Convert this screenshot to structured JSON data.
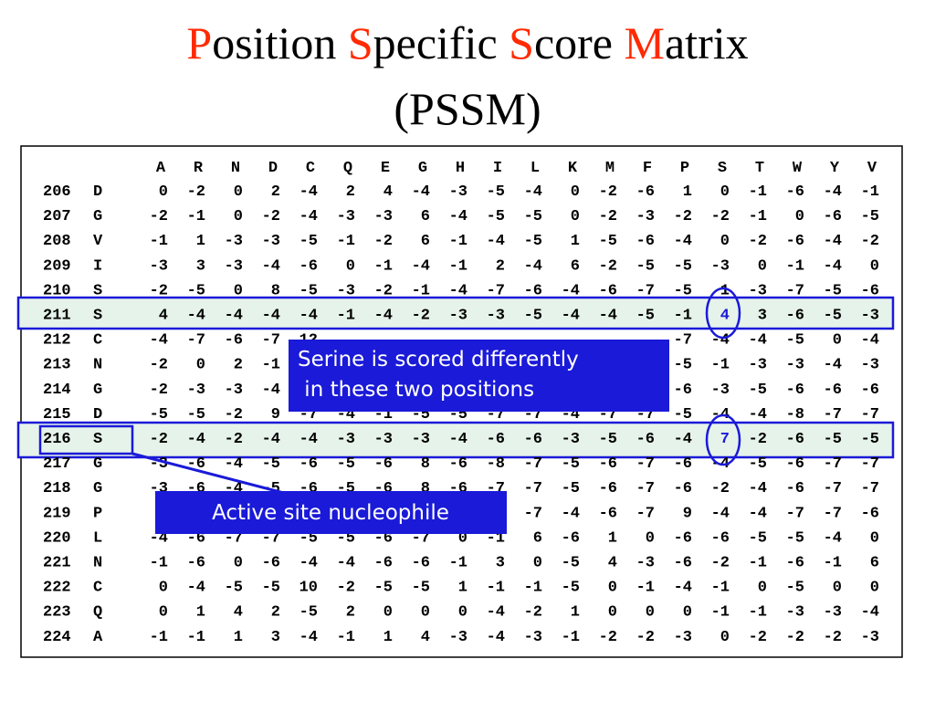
{
  "header": {
    "title_parts": [
      "P",
      "osition ",
      "S",
      "pecific ",
      "S",
      "core ",
      "M",
      "atrix"
    ],
    "subtitle": "(PSSM)"
  },
  "table": {
    "columns": [
      "A",
      "R",
      "N",
      "D",
      "C",
      "Q",
      "E",
      "G",
      "H",
      "I",
      "L",
      "K",
      "M",
      "F",
      "P",
      "S",
      "T",
      "W",
      "Y",
      "V"
    ],
    "rows": [
      {
        "position": 206,
        "residue": "D",
        "scores": [
          0,
          -2,
          0,
          2,
          -4,
          2,
          4,
          -4,
          -3,
          -5,
          -4,
          0,
          -2,
          -6,
          1,
          0,
          -1,
          -6,
          -4,
          -1
        ]
      },
      {
        "position": 207,
        "residue": "G",
        "scores": [
          -2,
          -1,
          0,
          -2,
          -4,
          -3,
          -3,
          6,
          -4,
          -5,
          -5,
          0,
          -2,
          -3,
          -2,
          -2,
          -1,
          0,
          -6,
          -5
        ]
      },
      {
        "position": 208,
        "residue": "V",
        "scores": [
          -1,
          1,
          -3,
          -3,
          -5,
          -1,
          -2,
          6,
          -1,
          -4,
          -5,
          1,
          -5,
          -6,
          -4,
          0,
          -2,
          -6,
          -4,
          -2
        ]
      },
      {
        "position": 209,
        "residue": "I",
        "scores": [
          -3,
          3,
          -3,
          -4,
          -6,
          0,
          -1,
          -4,
          -1,
          2,
          -4,
          6,
          -2,
          -5,
          -5,
          -3,
          0,
          -1,
          -4,
          0
        ]
      },
      {
        "position": 210,
        "residue": "S",
        "scores": [
          -2,
          -5,
          0,
          8,
          -5,
          -3,
          -2,
          -1,
          -4,
          -7,
          -6,
          -4,
          -6,
          -7,
          -5,
          1,
          -3,
          -7,
          -5,
          -6
        ]
      },
      {
        "position": 211,
        "residue": "S",
        "scores": [
          4,
          -4,
          -4,
          -4,
          -4,
          -1,
          -4,
          -2,
          -3,
          -3,
          -5,
          -4,
          -4,
          -5,
          -1,
          4,
          3,
          -6,
          -5,
          -3
        ]
      },
      {
        "position": 212,
        "residue": "C",
        "scores": [
          -4,
          -7,
          -6,
          -7,
          12,
          null,
          null,
          null,
          null,
          null,
          null,
          null,
          null,
          null,
          -7,
          -4,
          -4,
          -5,
          0,
          -4
        ]
      },
      {
        "position": 213,
        "residue": "N",
        "scores": [
          -2,
          0,
          2,
          -1,
          null,
          null,
          null,
          null,
          null,
          null,
          null,
          null,
          null,
          null,
          -5,
          -1,
          -3,
          -3,
          -4,
          -3
        ]
      },
      {
        "position": 214,
        "residue": "G",
        "scores": [
          -2,
          -3,
          -3,
          -4,
          null,
          null,
          null,
          null,
          null,
          null,
          null,
          null,
          null,
          null,
          -6,
          -3,
          -5,
          -6,
          -6,
          -6
        ]
      },
      {
        "position": 215,
        "residue": "D",
        "scores": [
          -5,
          -5,
          -2,
          9,
          -7,
          -4,
          -1,
          -5,
          -5,
          -7,
          -7,
          -4,
          -7,
          -7,
          -5,
          -4,
          -4,
          -8,
          -7,
          -7
        ]
      },
      {
        "position": 216,
        "residue": "S",
        "scores": [
          -2,
          -4,
          -2,
          -4,
          -4,
          -3,
          -3,
          -3,
          -4,
          -6,
          -6,
          -3,
          -5,
          -6,
          -4,
          7,
          -2,
          -6,
          -5,
          -5
        ]
      },
      {
        "position": 217,
        "residue": "G",
        "scores": [
          -3,
          -6,
          -4,
          -5,
          -6,
          -5,
          -6,
          8,
          -6,
          -8,
          -7,
          -5,
          -6,
          -7,
          -6,
          -4,
          -5,
          -6,
          -7,
          -7
        ]
      },
      {
        "position": 218,
        "residue": "G",
        "scores": [
          -3,
          -6,
          -4,
          -5,
          -6,
          -5,
          -6,
          8,
          -6,
          -7,
          -7,
          -5,
          -6,
          -7,
          -6,
          -2,
          -4,
          -6,
          -7,
          -7
        ]
      },
      {
        "position": 219,
        "residue": "P",
        "scores": [
          null,
          null,
          null,
          null,
          null,
          null,
          null,
          null,
          null,
          null,
          -7,
          -4,
          -6,
          -7,
          9,
          -4,
          -4,
          -7,
          -7,
          -6
        ]
      },
      {
        "position": 220,
        "residue": "L",
        "scores": [
          -4,
          -6,
          -7,
          -7,
          -5,
          -5,
          -6,
          -7,
          0,
          -1,
          6,
          -6,
          1,
          0,
          -6,
          -6,
          -5,
          -5,
          -4,
          0
        ]
      },
      {
        "position": 221,
        "residue": "N",
        "scores": [
          -1,
          -6,
          0,
          -6,
          -4,
          -4,
          -6,
          -6,
          -1,
          3,
          0,
          -5,
          4,
          -3,
          -6,
          -2,
          -1,
          -6,
          -1,
          6
        ]
      },
      {
        "position": 222,
        "residue": "C",
        "scores": [
          0,
          -4,
          -5,
          -5,
          10,
          -2,
          -5,
          -5,
          1,
          -1,
          -1,
          -5,
          0,
          -1,
          -4,
          -1,
          0,
          -5,
          0,
          0
        ]
      },
      {
        "position": 223,
        "residue": "Q",
        "scores": [
          0,
          1,
          4,
          2,
          -5,
          2,
          0,
          0,
          0,
          -4,
          -2,
          1,
          0,
          0,
          0,
          -1,
          -1,
          -3,
          -3,
          -4
        ]
      },
      {
        "position": 224,
        "residue": "A",
        "scores": [
          -1,
          -1,
          1,
          3,
          -4,
          -1,
          1,
          4,
          -3,
          -4,
          -3,
          -1,
          -2,
          -2,
          -3,
          0,
          -2,
          -2,
          -2,
          -3
        ]
      }
    ]
  },
  "callouts": [
    "Serine is scored differently",
    " in these two positions",
    "Active site nucleophile"
  ]
}
